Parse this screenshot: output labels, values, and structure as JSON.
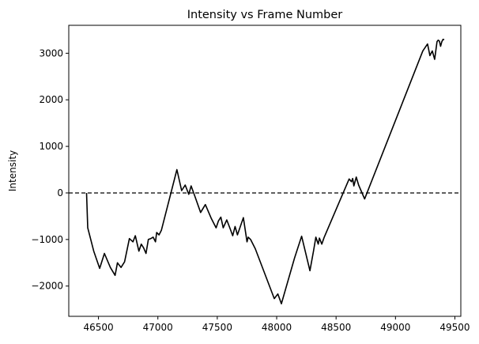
{
  "chart_data": {
    "type": "line",
    "title": "Intensity vs Frame Number",
    "xlabel": "",
    "ylabel": "Intensity",
    "xlim": [
      46250,
      49550
    ],
    "ylim": [
      -2650,
      3600
    ],
    "xticks": [
      46500,
      47000,
      47500,
      48000,
      48500,
      49000,
      49500
    ],
    "yticks": [
      -2000,
      -1000,
      0,
      1000,
      2000,
      3000
    ],
    "grid": false,
    "reference_line": {
      "y": 0,
      "style": "dashed",
      "color": "#000000"
    },
    "series": [
      {
        "color": "#000000",
        "x": [
          46400,
          46410,
          46460,
          46510,
          46550,
          46600,
          46640,
          46660,
          46690,
          46720,
          46760,
          46790,
          46810,
          46840,
          46860,
          46880,
          46900,
          46920,
          46940,
          46960,
          46980,
          46990,
          47010,
          47030,
          47160,
          47200,
          47230,
          47260,
          47280,
          47310,
          47360,
          47400,
          47450,
          47490,
          47510,
          47530,
          47550,
          47580,
          47610,
          47630,
          47650,
          47670,
          47720,
          47750,
          47760,
          47780,
          47820,
          47980,
          48010,
          48040,
          48150,
          48210,
          48280,
          48310,
          48330,
          48350,
          48360,
          48380,
          48400,
          48610,
          48630,
          48640,
          48650,
          48670,
          48690,
          48740,
          49230,
          49270,
          49290,
          49310,
          49330,
          49350,
          49360,
          49370,
          49380,
          49390,
          49400,
          49410
        ],
        "y": [
          0,
          -750,
          -1250,
          -1620,
          -1300,
          -1600,
          -1770,
          -1500,
          -1600,
          -1480,
          -980,
          -1050,
          -920,
          -1250,
          -1100,
          -1180,
          -1300,
          -1000,
          -980,
          -950,
          -1050,
          -850,
          -900,
          -800,
          500,
          50,
          170,
          -30,
          150,
          -60,
          -420,
          -250,
          -550,
          -750,
          -600,
          -520,
          -750,
          -580,
          -780,
          -920,
          -720,
          -900,
          -530,
          -1050,
          -950,
          -1000,
          -1200,
          -2270,
          -2170,
          -2380,
          -1400,
          -930,
          -1670,
          -1250,
          -950,
          -1100,
          -970,
          -1100,
          -950,
          300,
          240,
          310,
          150,
          340,
          170,
          -130,
          3050,
          3200,
          2950,
          3050,
          2870,
          3250,
          3280,
          3260,
          3150,
          3250,
          3300,
          3290
        ]
      }
    ]
  }
}
